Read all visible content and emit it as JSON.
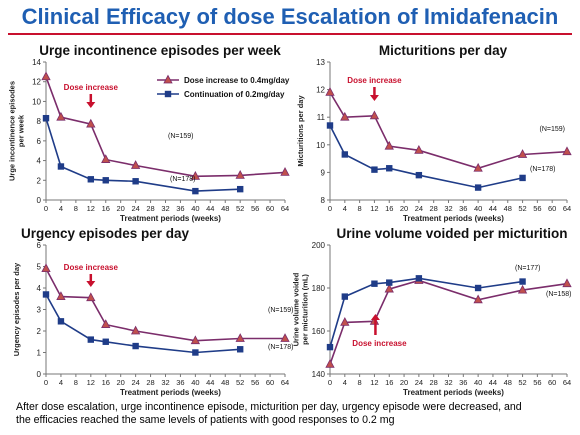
{
  "slide": {
    "title": "Clinical Efficacy of dose Escalation of Imidafenacin",
    "footnote_lines": [
      "After dose escalation, urge incontinence episode, micturition per day, urgency episode were decreased, and",
      "the efficacies reached the same levels of patients with good responses to 0.2 mg"
    ]
  },
  "colors": {
    "title": "#1f5fb3",
    "rule": "#c8102e",
    "dose_increase_series": "#7b2d6b",
    "dose_increase_marker": "#c0504d",
    "continuation_series": "#1f3c88",
    "annotation": "#c8102e"
  },
  "chart_data": [
    {
      "type": "line",
      "title": "Urge incontinence episodes per week",
      "ylabel": "Urge incontinence episodes per week",
      "xlabel": "Treatment periods (weeks)",
      "xlim": [
        0,
        64
      ],
      "ylim": [
        0,
        14
      ],
      "xticks": [
        0,
        4,
        8,
        12,
        16,
        20,
        24,
        28,
        32,
        36,
        40,
        44,
        48,
        52,
        56,
        60,
        64
      ],
      "yticks": [
        0,
        2,
        4,
        6,
        8,
        10,
        12,
        14
      ],
      "series": [
        {
          "name": "Dose increase to 0.4mg/day",
          "marker": "triangle",
          "label": "(N=159)",
          "x": [
            0,
            4,
            12,
            16,
            24,
            40,
            52,
            64
          ],
          "y": [
            12.5,
            8.4,
            7.7,
            4.1,
            3.5,
            2.4,
            2.5,
            2.8
          ]
        },
        {
          "name": "Continuation of 0.2mg/day",
          "marker": "square",
          "label": "(N=178)",
          "x": [
            0,
            4,
            12,
            16,
            24,
            40,
            52
          ],
          "y": [
            8.3,
            3.4,
            2.1,
            2.0,
            1.9,
            0.9,
            1.1
          ]
        }
      ],
      "annotation": {
        "text": "Dose increase",
        "x": 12
      },
      "legend": "top-right"
    },
    {
      "type": "line",
      "title": "Micturitions per day",
      "ylabel": "Micturitions per day",
      "xlabel": "Treatment periods (weeks)",
      "xlim": [
        0,
        64
      ],
      "ylim": [
        8,
        13
      ],
      "xticks": [
        0,
        4,
        8,
        12,
        16,
        20,
        24,
        28,
        32,
        36,
        40,
        44,
        48,
        52,
        56,
        60,
        64
      ],
      "yticks": [
        8,
        9,
        10,
        11,
        12,
        13
      ],
      "series": [
        {
          "name": "Dose increase to 0.4mg/day",
          "marker": "triangle",
          "label": "(N=159)",
          "x": [
            0,
            4,
            12,
            16,
            24,
            40,
            52,
            64
          ],
          "y": [
            11.9,
            11.0,
            11.05,
            9.95,
            9.8,
            9.15,
            9.65,
            9.75
          ]
        },
        {
          "name": "Continuation of 0.2mg/day",
          "marker": "square",
          "label": "(N=178)",
          "x": [
            0,
            4,
            12,
            16,
            24,
            40,
            52
          ],
          "y": [
            10.7,
            9.65,
            9.1,
            9.15,
            8.9,
            8.45,
            8.8
          ]
        }
      ],
      "annotation": {
        "text": "Dose increase",
        "x": 12
      }
    },
    {
      "type": "line",
      "title": "Urgency episodes per day",
      "ylabel": "Urgency episodes per day",
      "xlabel": "Treatment periods (weeks)",
      "xlim": [
        0,
        64
      ],
      "ylim": [
        0,
        6
      ],
      "xticks": [
        0,
        4,
        8,
        12,
        16,
        20,
        24,
        28,
        32,
        36,
        40,
        44,
        48,
        52,
        56,
        60,
        64
      ],
      "yticks": [
        0,
        1,
        2,
        3,
        4,
        5,
        6
      ],
      "series": [
        {
          "name": "Dose increase to 0.4mg/day",
          "marker": "triangle",
          "label": "(N=159)",
          "x": [
            0,
            4,
            12,
            16,
            24,
            40,
            52,
            64
          ],
          "y": [
            4.9,
            3.6,
            3.55,
            2.3,
            2.0,
            1.55,
            1.65,
            1.65
          ]
        },
        {
          "name": "Continuation of 0.2mg/day",
          "marker": "square",
          "label": "(N=178)",
          "x": [
            0,
            4,
            12,
            16,
            24,
            40,
            52
          ],
          "y": [
            3.7,
            2.45,
            1.6,
            1.5,
            1.3,
            1.0,
            1.15
          ]
        }
      ],
      "annotation": {
        "text": "Dose increase",
        "x": 12
      }
    },
    {
      "type": "line",
      "title": "Urine volume voided per micturition",
      "ylabel": "Urine volume voided per micturition (mL)",
      "xlabel": "Treatment periods (weeks)",
      "xlim": [
        0,
        64
      ],
      "ylim": [
        140,
        200
      ],
      "xticks": [
        0,
        4,
        8,
        12,
        16,
        20,
        24,
        28,
        32,
        36,
        40,
        44,
        48,
        52,
        56,
        60,
        64
      ],
      "yticks": [
        140,
        160,
        180,
        200
      ],
      "series": [
        {
          "name": "Dose increase to 0.4mg/day",
          "marker": "triangle",
          "label": "(N=158)",
          "x": [
            0,
            4,
            12,
            16,
            24,
            40,
            52,
            64
          ],
          "y": [
            144.5,
            164,
            164.5,
            179.5,
            183.5,
            174.5,
            179,
            182
          ]
        },
        {
          "name": "Continuation of 0.2mg/day",
          "marker": "square",
          "label": "(N=177)",
          "x": [
            0,
            4,
            12,
            16,
            24,
            40,
            52
          ],
          "y": [
            152.5,
            176,
            182,
            182.5,
            184.5,
            180,
            183
          ]
        }
      ],
      "annotation": {
        "text": "Dose increase",
        "x": 12
      }
    }
  ]
}
